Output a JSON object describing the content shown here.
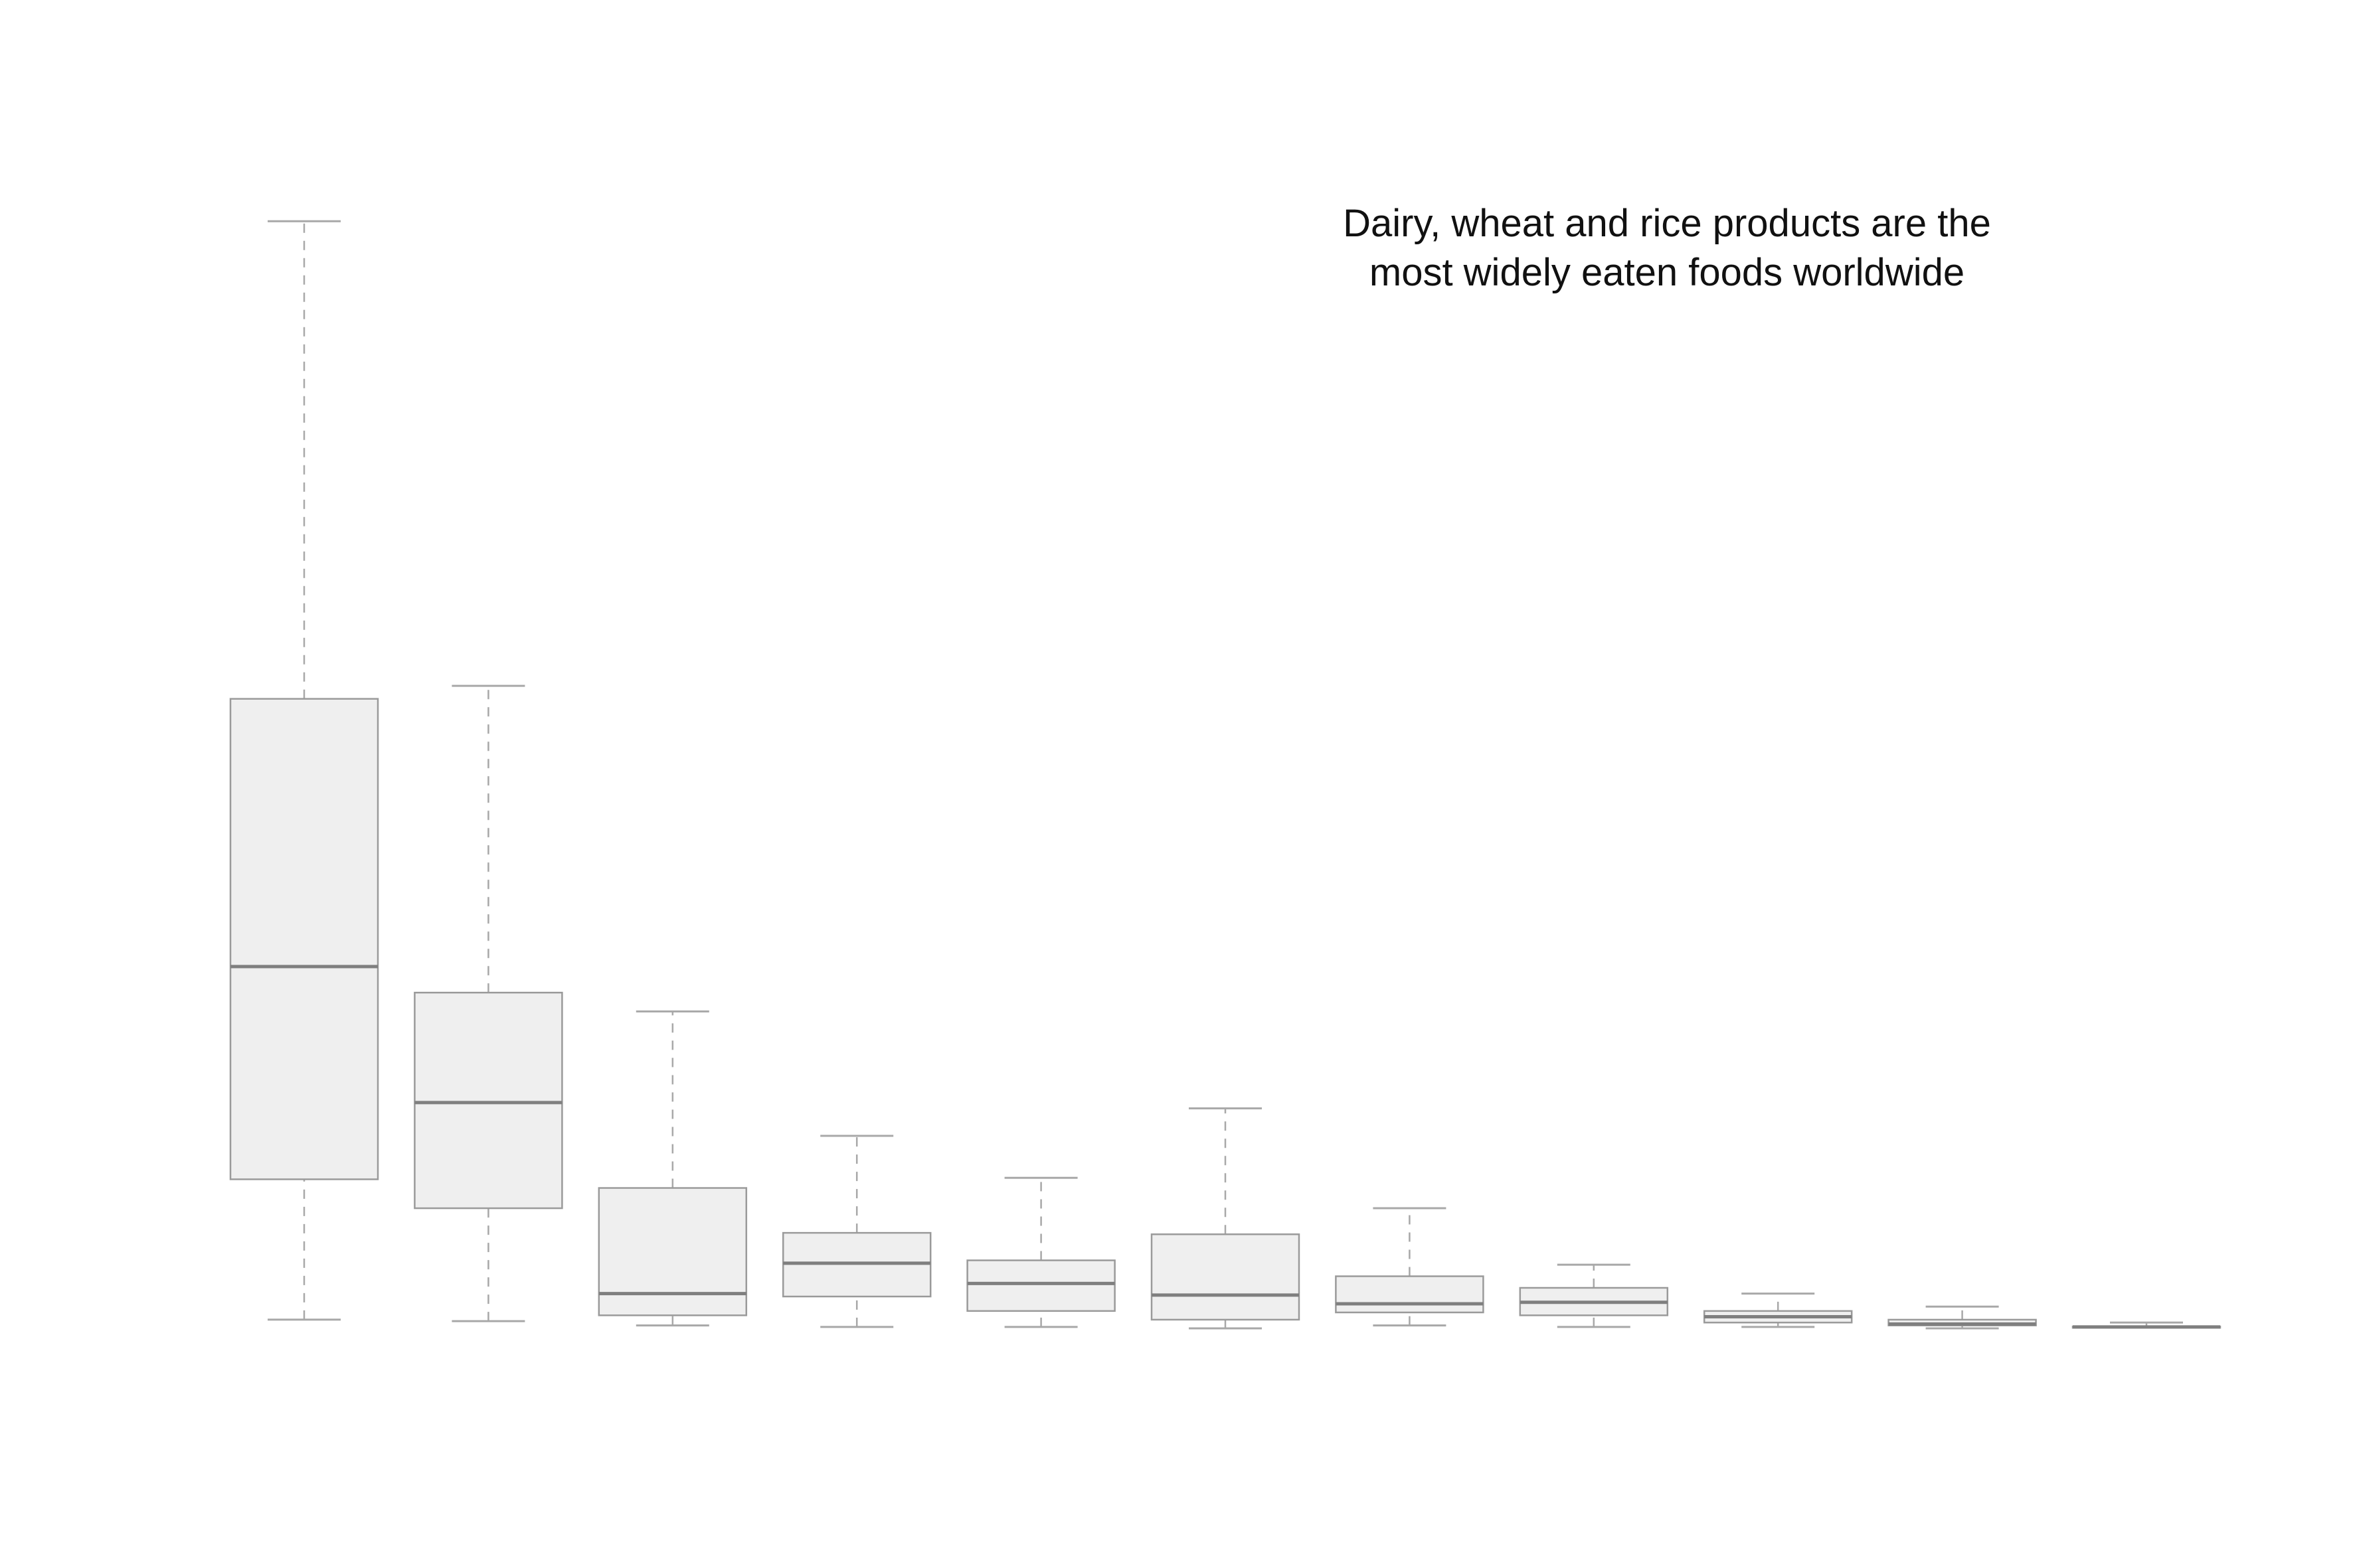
{
  "chart_data": {
    "type": "box",
    "title_lines": [
      "Dairy, wheat and rice products are the",
      "most widely eaten foods worldwide"
    ],
    "xlabel": "",
    "ylabel": "",
    "grid": false,
    "legend": "none",
    "box_fill": "#efefef",
    "box_stroke": "#9a9a9a",
    "median_color": "#7f7f7f",
    "whisker_color": "#a8a8a8",
    "boxes": [
      {
        "min": 0.6,
        "q1": 10.3,
        "median": 25.0,
        "q3": 43.5,
        "max": 76.5
      },
      {
        "min": 0.5,
        "q1": 8.3,
        "median": 15.6,
        "q3": 23.2,
        "max": 44.4
      },
      {
        "min": 0.2,
        "q1": 0.9,
        "median": 2.4,
        "q3": 9.7,
        "max": 21.9
      },
      {
        "min": 0.1,
        "q1": 2.2,
        "median": 4.5,
        "q3": 6.6,
        "max": 13.3
      },
      {
        "min": 0.1,
        "q1": 1.2,
        "median": 3.1,
        "q3": 4.7,
        "max": 10.4
      },
      {
        "min": 0.0,
        "q1": 0.6,
        "median": 2.3,
        "q3": 6.5,
        "max": 15.2
      },
      {
        "min": 0.2,
        "q1": 1.1,
        "median": 1.7,
        "q3": 3.6,
        "max": 8.3
      },
      {
        "min": 0.1,
        "q1": 0.9,
        "median": 1.8,
        "q3": 2.8,
        "max": 4.4
      },
      {
        "min": 0.1,
        "q1": 0.4,
        "median": 0.8,
        "q3": 1.2,
        "max": 2.4
      },
      {
        "min": 0.0,
        "q1": 0.2,
        "median": 0.3,
        "q3": 0.6,
        "max": 1.5
      },
      {
        "min": 0.05,
        "q1": 0.08,
        "median": 0.1,
        "q3": 0.13,
        "max": 0.4
      }
    ]
  }
}
